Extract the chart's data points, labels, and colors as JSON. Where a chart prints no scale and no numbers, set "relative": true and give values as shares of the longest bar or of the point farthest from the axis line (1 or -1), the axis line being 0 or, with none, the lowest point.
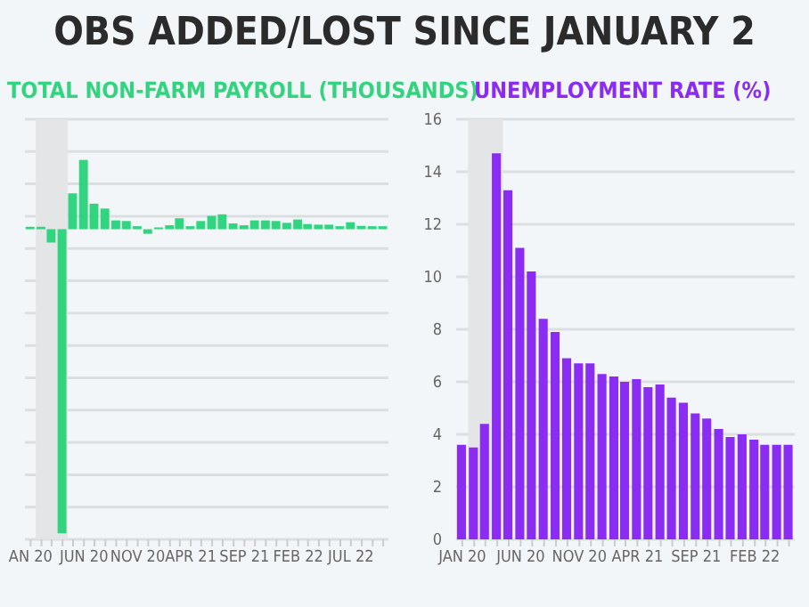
{
  "chart_data": [
    {
      "type": "bar",
      "title": "OBS ADDED/LOST SINCE JANUARY 2",
      "subtitle": "TOTAL NON-FARM PAYROLL (THOUSANDS)",
      "relative": true,
      "color": "#33d47f",
      "grid": "y",
      "tick_labels": "x",
      "x": [
        "2020-01",
        "2020-02",
        "2020-03",
        "2020-04",
        "2020-05",
        "2020-06",
        "2020-07",
        "2020-08",
        "2020-09",
        "2020-10",
        "2020-11",
        "2020-12",
        "2021-01",
        "2021-02",
        "2021-03",
        "2021-04",
        "2021-05",
        "2021-06",
        "2021-07",
        "2021-08",
        "2021-09",
        "2021-10",
        "2021-11",
        "2021-12",
        "2022-01",
        "2022-02",
        "2022-03",
        "2022-04",
        "2022-05",
        "2022-06",
        "2022-07",
        "2022-08",
        "2022-09",
        "2022-10"
      ],
      "values": [
        0.008,
        0.008,
        -0.044,
        -1,
        0.118,
        0.228,
        0.084,
        0.068,
        0.029,
        0.027,
        0.01,
        -0.015,
        0.006,
        0.013,
        0.036,
        0.01,
        0.027,
        0.044,
        0.049,
        0.019,
        0.013,
        0.029,
        0.029,
        0.027,
        0.021,
        0.032,
        0.017,
        0.015,
        0.015,
        0.01,
        0.023,
        0.011,
        0.01,
        0.01
      ],
      "xlim": [
        "2019-12-16",
        "2022-10-16"
      ],
      "xticks": [
        {
          "value": "2020-01",
          "label": "AN 20"
        },
        {
          "value": "2020-06",
          "label": "JUN 20"
        },
        {
          "value": "2020-11",
          "label": "NOV 20"
        },
        {
          "value": "2021-04",
          "label": "APR 21"
        },
        {
          "value": "2021-09",
          "label": "SEP 21"
        },
        {
          "value": "2022-02",
          "label": "FEB 22"
        },
        {
          "value": "2022-07",
          "label": "JUL 22"
        }
      ],
      "bands": [
        {
          "axis": "x",
          "from": "2020-01-16",
          "to": "2020-04-16",
          "color": "#e3e5e7"
        }
      ]
    },
    {
      "type": "bar",
      "title": "UNEMPLOYMENT RATE (%)",
      "color": "#8a2cf2",
      "grid": "y",
      "x": [
        "2020-01",
        "2020-02",
        "2020-03",
        "2020-04",
        "2020-05",
        "2020-06",
        "2020-07",
        "2020-08",
        "2020-09",
        "2020-10",
        "2020-11",
        "2020-12",
        "2021-01",
        "2021-02",
        "2021-03",
        "2021-04",
        "2021-05",
        "2021-06",
        "2021-07",
        "2021-08",
        "2021-09",
        "2021-10",
        "2021-11",
        "2021-12",
        "2022-01",
        "2022-02",
        "2022-03",
        "2022-04",
        "2022-05"
      ],
      "values": [
        3.6,
        3.5,
        4.4,
        14.7,
        13.3,
        11.1,
        10.2,
        8.4,
        7.9,
        6.9,
        6.7,
        6.7,
        6.3,
        6.2,
        6.0,
        6.1,
        5.8,
        5.9,
        5.4,
        5.2,
        4.8,
        4.6,
        4.2,
        3.9,
        4.0,
        3.8,
        3.6,
        3.6,
        3.6
      ],
      "ylim": [
        0,
        16
      ],
      "yticks": [
        0,
        2,
        4,
        6,
        8,
        10,
        12,
        14,
        16
      ],
      "xlim": [
        "2019-12-16",
        "2022-05-16"
      ],
      "xticks": [
        {
          "value": "2020-01",
          "label": "JAN 20"
        },
        {
          "value": "2020-06",
          "label": "JUN 20"
        },
        {
          "value": "2020-11",
          "label": "NOV 20"
        },
        {
          "value": "2021-04",
          "label": "APR 21"
        },
        {
          "value": "2021-09",
          "label": "SEP 21"
        },
        {
          "value": "2022-02",
          "label": "FEB 22"
        }
      ],
      "bands": [
        {
          "axis": "x",
          "from": "2020-01-16",
          "to": "2020-04-16",
          "color": "#e3e5e7"
        }
      ]
    }
  ]
}
